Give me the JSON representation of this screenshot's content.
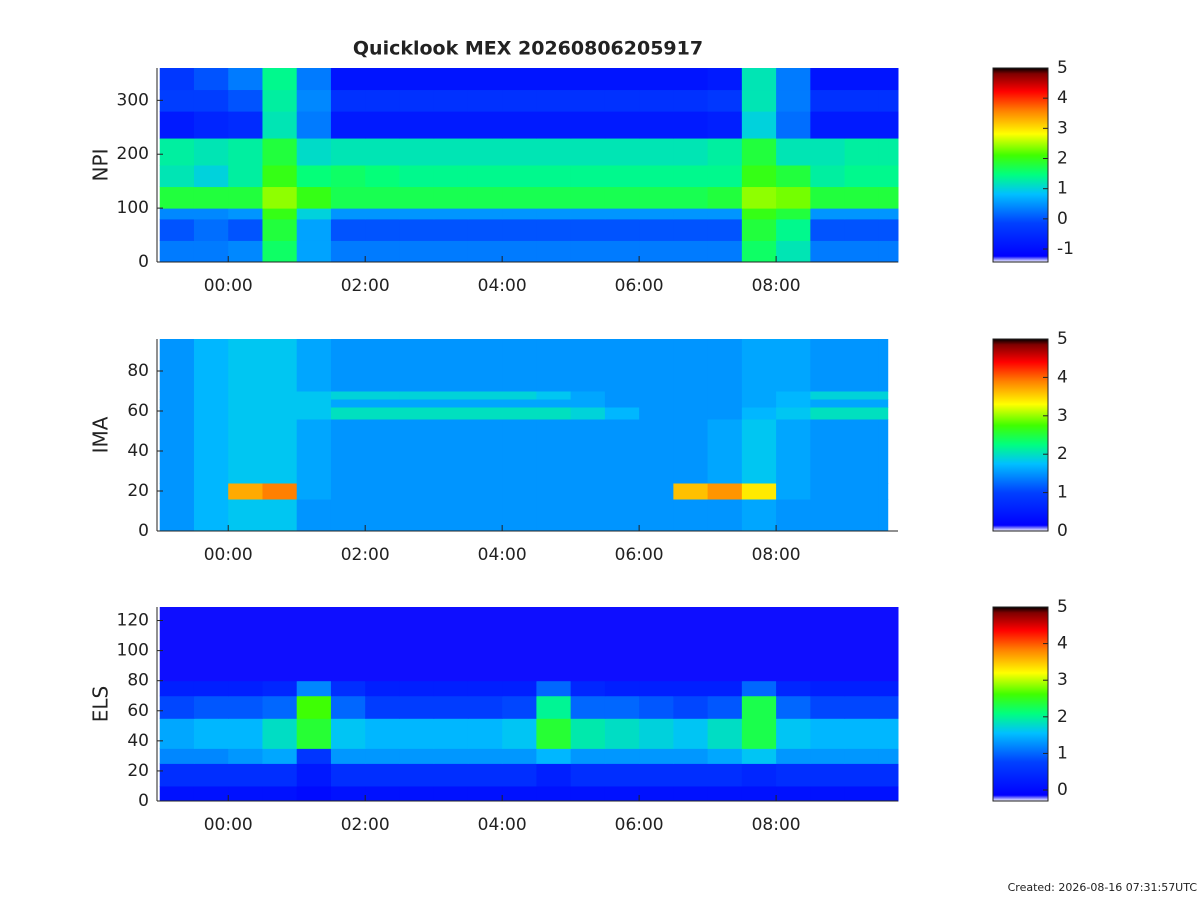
{
  "chart_data": [
    {
      "type": "heatmap",
      "title": "Quicklook MEX 20260806205917",
      "ylabel": "NPI",
      "xlim": [
        -1.04,
        9.78
      ],
      "ylim": [
        0,
        360
      ],
      "xticks": [
        {
          "value": 0,
          "label": "00:00"
        },
        {
          "value": 2,
          "label": "02:00"
        },
        {
          "value": 4,
          "label": "04:00"
        },
        {
          "value": 6,
          "label": "06:00"
        },
        {
          "value": 8,
          "label": "08:00"
        }
      ],
      "yticks": [
        0,
        100,
        200,
        300
      ],
      "x_edges": [
        -1,
        -0.5,
        0,
        0.5,
        1,
        1.5,
        2,
        2.5,
        3,
        3.5,
        4,
        4.5,
        5,
        5.5,
        6,
        6.5,
        7,
        7.5,
        8,
        8.5,
        9,
        9.5,
        9.78
      ],
      "y_edges": [
        0,
        40,
        80,
        100,
        140,
        180,
        230,
        280,
        320,
        360
      ],
      "z": [
        [
          0.3,
          0.3,
          0.4,
          1.6,
          0.6,
          0.3,
          0.3,
          0.3,
          0.3,
          0.3,
          0.3,
          0.3,
          0.3,
          0.3,
          0.3,
          0.3,
          0.3,
          1.6,
          1.2,
          0.3,
          0.3,
          0.3
        ],
        [
          0,
          0.2,
          0,
          1.8,
          0.6,
          0,
          0,
          0,
          0,
          0,
          0,
          0,
          0,
          0,
          0,
          0,
          0,
          1.8,
          1.4,
          0,
          0,
          0
        ],
        [
          0.4,
          0.4,
          0.5,
          2.0,
          1.0,
          0.5,
          0.5,
          0.5,
          0.5,
          0.5,
          0.5,
          0.5,
          0.5,
          0.5,
          0.5,
          0.5,
          0.5,
          2.0,
          1.8,
          0.5,
          0.5,
          0.5
        ],
        [
          1.8,
          1.8,
          1.8,
          2.4,
          2.0,
          1.7,
          1.7,
          1.7,
          1.7,
          1.7,
          1.7,
          1.7,
          1.7,
          1.7,
          1.7,
          1.7,
          1.8,
          2.4,
          2.3,
          1.8,
          1.8,
          1.8
        ],
        [
          1.2,
          1.0,
          1.3,
          2.0,
          1.5,
          1.6,
          1.5,
          1.4,
          1.4,
          1.4,
          1.4,
          1.4,
          1.4,
          1.4,
          1.4,
          1.4,
          1.4,
          2.0,
          1.8,
          1.3,
          1.4,
          1.4
        ],
        [
          1.3,
          1.2,
          1.3,
          1.8,
          1.1,
          1.2,
          1.2,
          1.2,
          1.2,
          1.2,
          1.2,
          1.2,
          1.2,
          1.2,
          1.2,
          1.2,
          1.3,
          1.8,
          1.2,
          1.2,
          1.3,
          1.3
        ],
        [
          -0.8,
          -0.6,
          -0.5,
          1.2,
          0.3,
          -0.8,
          -0.8,
          -0.8,
          -0.8,
          -0.8,
          -0.8,
          -0.8,
          -0.8,
          -0.8,
          -0.8,
          -0.8,
          -0.7,
          1.0,
          0.2,
          -0.8,
          -0.8,
          -0.8
        ],
        [
          -0.2,
          -0.2,
          0,
          1.3,
          0.4,
          -0.4,
          -0.4,
          -0.4,
          -0.4,
          -0.4,
          -0.4,
          -0.4,
          -0.4,
          -0.4,
          -0.4,
          -0.4,
          -0.3,
          1.2,
          0.3,
          -0.4,
          -0.4,
          -0.4
        ],
        [
          -0.3,
          0,
          0.3,
          1.4,
          0.3,
          -0.9,
          -0.9,
          -0.9,
          -0.9,
          -0.9,
          -0.9,
          -0.9,
          -0.9,
          -0.9,
          -0.9,
          -0.9,
          -0.8,
          1.2,
          0.3,
          -0.9,
          -0.9,
          -0.9
        ]
      ],
      "clim": [
        -1.43,
        5
      ],
      "cticks": [
        -1,
        0,
        1,
        2,
        3,
        4,
        5
      ],
      "colormap": [
        {
          "at": 0,
          "color": "#ffffff"
        },
        {
          "at": 0.03,
          "color": "#0000ff"
        },
        {
          "at": 0.2,
          "color": "#0040ff"
        },
        {
          "at": 0.35,
          "color": "#00c0ff"
        },
        {
          "at": 0.45,
          "color": "#00ff80"
        },
        {
          "at": 0.55,
          "color": "#40ff00"
        },
        {
          "at": 0.66,
          "color": "#ffff00"
        },
        {
          "at": 0.78,
          "color": "#ff8000"
        },
        {
          "at": 0.88,
          "color": "#ff0000"
        },
        {
          "at": 0.97,
          "color": "#800000"
        },
        {
          "at": 1,
          "color": "#000000"
        }
      ]
    },
    {
      "type": "heatmap",
      "ylabel": "IMA",
      "xlim": [
        -1.04,
        9.78
      ],
      "ylim": [
        0,
        96
      ],
      "xticks": [
        {
          "value": 0,
          "label": "00:00"
        },
        {
          "value": 2,
          "label": "02:00"
        },
        {
          "value": 4,
          "label": "04:00"
        },
        {
          "value": 6,
          "label": "06:00"
        },
        {
          "value": 8,
          "label": "08:00"
        }
      ],
      "yticks": [
        0,
        20,
        40,
        60,
        80
      ],
      "x_edges": [
        -1,
        -0.5,
        0,
        0.5,
        1,
        1.5,
        2,
        2.5,
        3,
        3.5,
        4,
        4.5,
        5,
        5.5,
        6,
        6.5,
        7,
        7.5,
        8,
        8.5,
        9,
        9.5,
        9.63
      ],
      "y_edges": [
        0,
        16,
        24,
        56,
        62,
        66,
        70,
        96
      ],
      "z": [
        [
          1.5,
          1.7,
          1.8,
          1.8,
          1.5,
          1.5,
          1.5,
          1.5,
          1.5,
          1.5,
          1.5,
          1.5,
          1.5,
          1.5,
          1.5,
          1.5,
          1.5,
          1.6,
          1.5,
          1.5,
          1.5,
          1.5
        ],
        [
          1.5,
          1.7,
          3.7,
          3.9,
          1.6,
          1.5,
          1.5,
          1.5,
          1.5,
          1.5,
          1.5,
          1.5,
          1.5,
          1.5,
          1.5,
          3.6,
          3.8,
          3.4,
          1.6,
          1.5,
          1.5,
          1.5
        ],
        [
          1.5,
          1.7,
          1.8,
          1.8,
          1.6,
          1.5,
          1.5,
          1.5,
          1.5,
          1.5,
          1.5,
          1.5,
          1.5,
          1.5,
          1.5,
          1.5,
          1.6,
          1.8,
          1.6,
          1.5,
          1.5,
          1.5
        ],
        [
          1.5,
          1.7,
          1.8,
          1.8,
          1.8,
          2.0,
          2.0,
          2.0,
          2.0,
          2.0,
          2.0,
          2.0,
          1.9,
          1.7,
          1.5,
          1.5,
          1.5,
          1.7,
          1.8,
          2.0,
          2.0,
          2.0
        ],
        [
          1.5,
          1.7,
          1.8,
          1.8,
          1.8,
          1.6,
          1.6,
          1.6,
          1.6,
          1.6,
          1.6,
          1.6,
          1.6,
          1.5,
          1.5,
          1.5,
          1.5,
          1.6,
          1.7,
          1.6,
          1.6,
          1.6
        ],
        [
          1.5,
          1.7,
          1.8,
          1.8,
          1.8,
          1.9,
          1.9,
          1.9,
          1.9,
          1.9,
          1.9,
          1.8,
          1.6,
          1.5,
          1.5,
          1.5,
          1.5,
          1.6,
          1.7,
          1.9,
          1.9,
          1.9
        ],
        [
          1.5,
          1.7,
          1.8,
          1.8,
          1.6,
          1.5,
          1.5,
          1.5,
          1.5,
          1.5,
          1.5,
          1.5,
          1.5,
          1.5,
          1.5,
          1.5,
          1.5,
          1.6,
          1.6,
          1.5,
          1.5,
          1.5
        ]
      ],
      "clim": [
        0,
        5
      ],
      "cticks": [
        0,
        1,
        2,
        3,
        4,
        5
      ],
      "colormap": [
        {
          "at": 0,
          "color": "#ffffff"
        },
        {
          "at": 0.03,
          "color": "#0000ff"
        },
        {
          "at": 0.2,
          "color": "#0040ff"
        },
        {
          "at": 0.35,
          "color": "#00c0ff"
        },
        {
          "at": 0.45,
          "color": "#00ff80"
        },
        {
          "at": 0.55,
          "color": "#40ff00"
        },
        {
          "at": 0.66,
          "color": "#ffff00"
        },
        {
          "at": 0.78,
          "color": "#ff8000"
        },
        {
          "at": 0.88,
          "color": "#ff0000"
        },
        {
          "at": 0.97,
          "color": "#800000"
        },
        {
          "at": 1,
          "color": "#000000"
        }
      ]
    },
    {
      "type": "heatmap",
      "ylabel": "ELS",
      "xlim": [
        -1.04,
        9.78
      ],
      "ylim": [
        0,
        129
      ],
      "xticks": [
        {
          "value": 0,
          "label": "00:00"
        },
        {
          "value": 2,
          "label": "02:00"
        },
        {
          "value": 4,
          "label": "04:00"
        },
        {
          "value": 6,
          "label": "06:00"
        },
        {
          "value": 8,
          "label": "08:00"
        }
      ],
      "yticks": [
        0,
        20,
        40,
        60,
        80,
        100,
        120
      ],
      "x_edges": [
        -1,
        -0.5,
        0,
        0.5,
        1,
        1.5,
        2,
        2.5,
        3,
        3.5,
        4,
        4.5,
        5,
        5.5,
        6,
        6.5,
        7,
        7.5,
        8,
        8.5,
        9,
        9.5,
        9.78
      ],
      "y_edges": [
        0,
        10,
        25,
        35,
        55,
        70,
        80,
        129
      ],
      "z": [
        [
          0.1,
          0.1,
          0.1,
          0.1,
          0.0,
          0.1,
          0.1,
          0.1,
          0.1,
          0.1,
          0.1,
          0.1,
          0.1,
          0.1,
          0.1,
          0.1,
          0.1,
          0.1,
          0.1,
          0.1,
          0.1,
          0.1
        ],
        [
          0.5,
          0.5,
          0.5,
          0.5,
          0.2,
          0.5,
          0.5,
          0.5,
          0.5,
          0.5,
          0.5,
          0.3,
          0.5,
          0.5,
          0.5,
          0.5,
          0.5,
          0.4,
          0.5,
          0.5,
          0.5,
          0.5
        ],
        [
          1.2,
          1.2,
          1.3,
          1.4,
          0.6,
          1.3,
          1.3,
          1.3,
          1.3,
          1.3,
          1.3,
          1.5,
          1.3,
          1.3,
          1.3,
          1.3,
          1.4,
          1.6,
          1.3,
          1.3,
          1.3,
          1.3
        ],
        [
          1.4,
          1.5,
          1.5,
          1.8,
          2.4,
          1.6,
          1.5,
          1.5,
          1.5,
          1.5,
          1.6,
          2.4,
          1.9,
          1.8,
          1.7,
          1.6,
          1.8,
          2.3,
          1.6,
          1.5,
          1.5,
          1.5
        ],
        [
          0.8,
          0.9,
          0.9,
          1.0,
          2.6,
          1.0,
          0.7,
          0.7,
          0.7,
          0.7,
          0.8,
          2.0,
          1.0,
          1.0,
          0.9,
          0.8,
          0.9,
          2.3,
          1.0,
          0.8,
          0.8,
          0.8
        ],
        [
          0.3,
          0.3,
          0.3,
          0.4,
          1.2,
          0.5,
          0.3,
          0.3,
          0.3,
          0.3,
          0.3,
          1.0,
          0.4,
          0.3,
          0.3,
          0.3,
          0.3,
          1.0,
          0.4,
          0.3,
          0.3,
          0.3
        ],
        [
          -0.15,
          -0.15,
          -0.15,
          -0.15,
          -0.15,
          -0.15,
          -0.15,
          -0.15,
          -0.15,
          -0.15,
          -0.15,
          -0.15,
          -0.15,
          -0.15,
          -0.15,
          -0.15,
          -0.15,
          -0.15,
          -0.15,
          -0.15,
          -0.15,
          -0.15
        ]
      ],
      "clim": [
        -0.3,
        5
      ],
      "cticks": [
        0,
        1,
        2,
        3,
        4,
        5
      ],
      "colormap": [
        {
          "at": 0,
          "color": "#ffffff"
        },
        {
          "at": 0.03,
          "color": "#0000ff"
        },
        {
          "at": 0.2,
          "color": "#0040ff"
        },
        {
          "at": 0.35,
          "color": "#00c0ff"
        },
        {
          "at": 0.45,
          "color": "#00ff80"
        },
        {
          "at": 0.55,
          "color": "#40ff00"
        },
        {
          "at": 0.66,
          "color": "#ffff00"
        },
        {
          "at": 0.78,
          "color": "#ff8000"
        },
        {
          "at": 0.88,
          "color": "#ff0000"
        },
        {
          "at": 0.97,
          "color": "#800000"
        },
        {
          "at": 1,
          "color": "#000000"
        }
      ]
    }
  ],
  "footer": "Created: 2026-08-16 07:31:57UTC"
}
